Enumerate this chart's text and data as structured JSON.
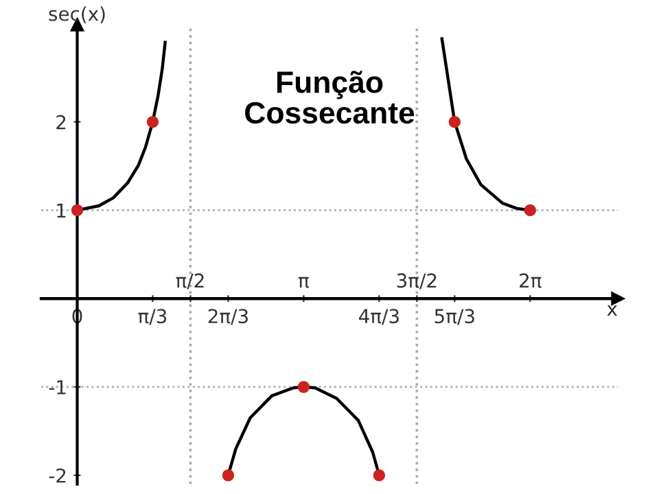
{
  "chart_data": {
    "type": "line",
    "title": "Função Cossecante",
    "xlabel": "x",
    "ylabel": "sec(x)",
    "xlim": [
      -0.5,
      7.5
    ],
    "ylim": [
      -2.1,
      3.1
    ],
    "xticks": [
      0,
      {
        "value": 1.0472,
        "label": "π/3"
      },
      {
        "value": 2.0944,
        "label": "2π/3"
      },
      {
        "value": 4.1888,
        "label": "4π/3"
      },
      {
        "value": 5.236,
        "label": "5π/3"
      }
    ],
    "x2lim": [
      -0.5,
      7.5
    ],
    "x2ticks": [
      {
        "value": 1.5708,
        "label": "π/2"
      },
      {
        "value": 3.1416,
        "label": "π"
      },
      {
        "value": 4.7124,
        "label": "3π/2"
      },
      {
        "value": 6.2832,
        "label": "2π"
      }
    ],
    "yticks": [
      -2,
      -1,
      1,
      2
    ],
    "ref_lines": [
      {
        "axis": "y",
        "value": 1,
        "label": null,
        "color": "#aaaaaa",
        "line_style": "dotted"
      },
      {
        "axis": "y",
        "value": -1,
        "label": null,
        "color": "#aaaaaa",
        "line_style": "dotted"
      },
      {
        "axis": "x",
        "value": 1.5708,
        "label": null,
        "color": "#aaaaaa",
        "line_style": "dotted"
      },
      {
        "axis": "x",
        "value": 4.7124,
        "label": null,
        "color": "#aaaaaa",
        "line_style": "dotted"
      }
    ],
    "grid": false,
    "legend": false,
    "series": [
      {
        "color": "#000000",
        "marker": "none",
        "x": [
          0,
          0.3,
          0.5,
          0.7,
          0.85,
          0.95,
          1.047,
          1.12,
          1.18,
          1.22,
          1.5708,
          2.094,
          2.2,
          2.4,
          2.7,
          3.0,
          3.1416,
          3.3,
          3.6,
          3.9,
          4.1,
          4.189,
          4.7124,
          5.06,
          5.236,
          5.4,
          5.6,
          5.9,
          6.1,
          6.283
        ],
        "values": [
          1,
          1.05,
          1.14,
          1.31,
          1.51,
          1.72,
          2,
          2.29,
          2.6,
          2.9,
          null,
          -2,
          -1.7,
          -1.35,
          -1.1,
          -1.01,
          -1,
          -1.01,
          -1.13,
          -1.38,
          -1.74,
          -2,
          null,
          2.94,
          2,
          1.58,
          1.29,
          1.08,
          1.02,
          1
        ]
      },
      {
        "type": "scatter",
        "color": "#cc2222",
        "marker": "circle",
        "x": [
          0,
          1.0472,
          2.0944,
          3.1416,
          4.1888,
          5.236,
          6.2832
        ],
        "values": [
          1,
          2,
          -2,
          -1,
          -2,
          2,
          1
        ]
      }
    ]
  }
}
